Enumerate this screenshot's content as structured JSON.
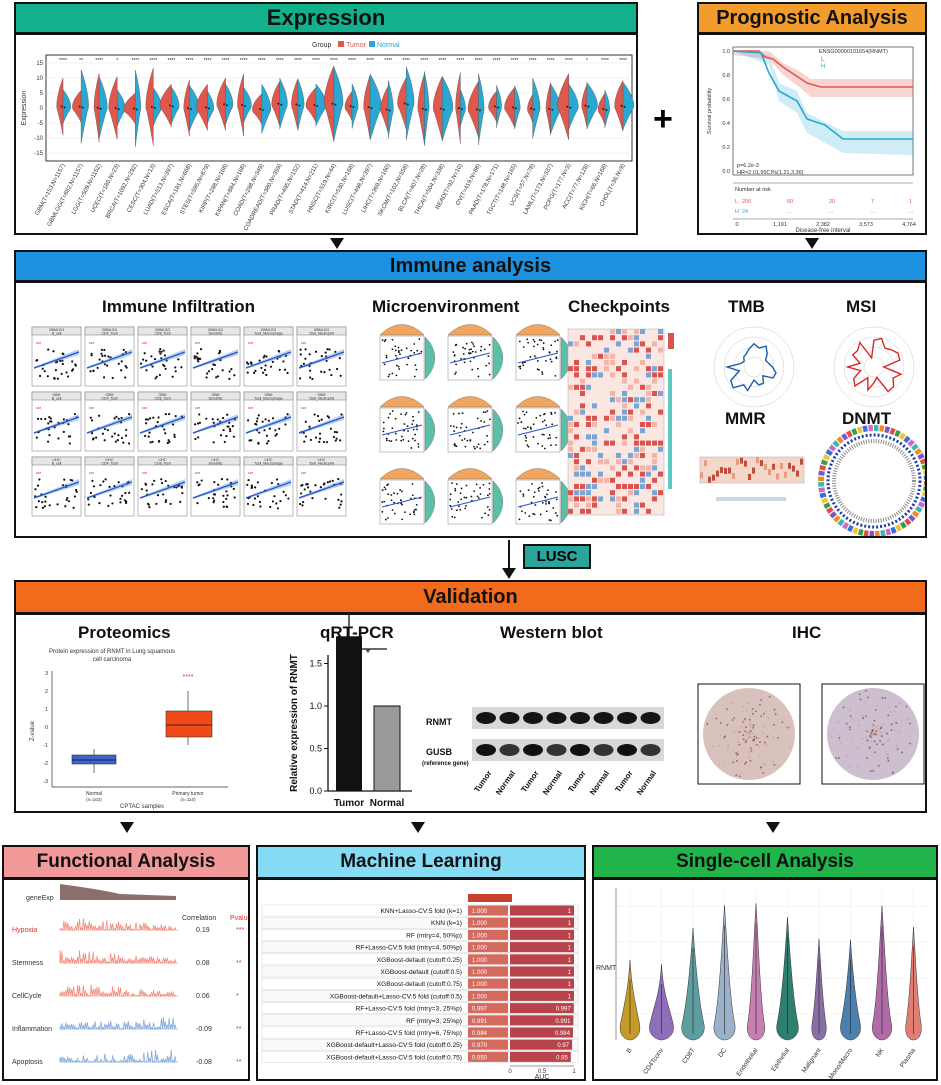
{
  "expression": {
    "title": "Expression",
    "legend_group": "Group",
    "legend_tumor": "Tumor",
    "legend_normal": "Normal",
    "ylabel": "Expression",
    "yticks": [
      "15",
      "10",
      "5",
      "0",
      "-5",
      "-10",
      "-15"
    ],
    "cancers": [
      "GBM(T=153,N=1157)",
      "GBMLGG(T=662,N=1157)",
      "LGG(T=509,N=1152)",
      "UCEC(T=180,N=23)",
      "BRCA(T=1092,N=292)",
      "CESC(T=304,N=13)",
      "LUAD(T=513,N=397)",
      "ESCA(T=181,N=668)",
      "STES(T=595,N=879)",
      "KIRP(T=288,N=168)",
      "KIPAN(T=884,N=168)",
      "COAD(T=288,N=349)",
      "COADREAD(T=380,N=359)",
      "PRAD(T=495,N=152)",
      "STAD(T=414,N=211)",
      "HNSC(T=519,N=44)",
      "KIRC(T=530,N=168)",
      "LUSC(T=498,N=397)",
      "LIHC(T=369,N=160)",
      "SKCM(T=102,N=558)",
      "BLCA(T=407,N=28)",
      "THCA(T=504,N=338)",
      "READ(T=92,N=10)",
      "OV(T=419,N=88)",
      "PAAD(T=178,N=171)",
      "TGCT(T=148,N=165)",
      "UCS(T=57,N=78)",
      "LAML(T=173,N=337)",
      "PCPG(T=177,N=3)",
      "ACC(T=77,N=128)",
      "KICH(T=66,N=168)",
      "CHOL(T=36,N=9)"
    ],
    "signif": [
      "****",
      "**",
      "****",
      "*",
      "****",
      "****",
      "****",
      "****",
      "****",
      "****",
      "****",
      "****",
      "****",
      "****",
      "****",
      "****",
      "****",
      "****",
      "****",
      "****",
      "****",
      "****",
      "****",
      "****",
      "****",
      "****",
      "****",
      "****",
      "****",
      "*",
      "****",
      "****"
    ]
  },
  "prognostic": {
    "title": "Prognostic Analysis",
    "legend_title": "ENSG00000101654(RNMT)",
    "legend_low": "L",
    "legend_high": "H",
    "ylabel": "Survival probability",
    "yticks": [
      "1.0",
      "0.8",
      "0.6",
      "0.4",
      "0.2",
      "0.0"
    ],
    "pvalue": "p=6.2e-3",
    "hr": "HR=2.01,95CI%(1.21,3.36)",
    "risk_title": "Number at risk",
    "risk_L": [
      "L",
      "206",
      "60",
      "20",
      "7",
      "1"
    ],
    "risk_H": [
      "H",
      "24",
      "...",
      "...",
      "...",
      "..."
    ],
    "xticks": [
      "0",
      "1,191",
      "2,382",
      "3,573",
      "4,764"
    ],
    "xlabel": "Disease-free interval"
  },
  "plus_sign": "+",
  "immune": {
    "title": "Immune analysis",
    "infiltration": "Immune Infiltration",
    "microenvironment": "Microenvironment",
    "checkpoints": "Checkpoints",
    "tmb": "TMB",
    "msi": "MSI",
    "mmr": "MMR",
    "dnmt": "DNMT",
    "cells": [
      "B_cell",
      "CD4_Tcell",
      "CD8_Tcell",
      "Dendritic",
      "Tcell_Macrophage",
      "Tcell_Neutrophil"
    ],
    "tissues": [
      "GBMLGG",
      "GBM",
      "LIHC"
    ]
  },
  "lusc_label": "LUSC",
  "validation": {
    "title": "Validation",
    "proteomics": "Proteomics",
    "proteomics_caption": "Protein expression of RNMT in Lung squamous cell carcinoma",
    "prot_ylabel": "Z-value",
    "prot_yticks": [
      "3",
      "2",
      "1",
      "0",
      "-1",
      "-2",
      "-3"
    ],
    "prot_normal": "Normal",
    "prot_normal_n": "(n=102)",
    "prot_tumor": "Primary tumor",
    "prot_tumor_n": "(n=110)",
    "prot_xlabel": "CPTAC samples",
    "prot_sig": "****",
    "qrt": "qRT-PCR",
    "qrt_ylabel": "Relative expression of RNMT",
    "qrt_yticks": [
      "1.5",
      "1.0",
      "0.5",
      "0.0"
    ],
    "qrt_sig": "*",
    "qrt_tumor": "Tumor",
    "qrt_normal": "Normal",
    "western": "Western blot",
    "wb_rnmt": "RNMT",
    "wb_gusb": "GUSB",
    "wb_ref": "(reference gene)",
    "wb_lanes": [
      "Tumor",
      "Normal",
      "Tumor",
      "Normal",
      "Tumor",
      "Normal",
      "Tumor",
      "Normal"
    ],
    "ihc": "IHC"
  },
  "functional": {
    "title": "Functional Analysis",
    "geneexp": "geneExp",
    "col_corr": "Correlation",
    "col_p": "Pvalue",
    "rows": [
      {
        "name": "Hypoxia",
        "corr": "0.19",
        "p": "***"
      },
      {
        "name": "Stemness",
        "corr": "0.08",
        "p": "**"
      },
      {
        "name": "CellCycle",
        "corr": "0.06",
        "p": "*"
      },
      {
        "name": "Inflammation",
        "corr": "-0.09",
        "p": "**"
      },
      {
        "name": "Apoptosis",
        "corr": "-0.08",
        "p": "**"
      }
    ]
  },
  "ml": {
    "title": "Machine Learning",
    "auc_label": "AUC",
    "ticks": [
      "0",
      "0.5",
      "1"
    ],
    "rows": [
      {
        "name": "KNN+Lasso-CV:5 fold (k=1)",
        "train": "1.000",
        "test": "1"
      },
      {
        "name": "KNN (k=1)",
        "train": "1.000",
        "test": "1"
      },
      {
        "name": "RF (mtry=4, 50%p)",
        "train": "1.000",
        "test": "1"
      },
      {
        "name": "RF+Lasso-CV:5 fold (mtry=4, 50%p)",
        "train": "1.000",
        "test": "1"
      },
      {
        "name": "XGBoost-default (cutoff:0.25)",
        "train": "1.000",
        "test": "1"
      },
      {
        "name": "XGBoost-default (cutoff:0.5)",
        "train": "1.000",
        "test": "1"
      },
      {
        "name": "XGBoost-default (cutoff:0.75)",
        "train": "1.000",
        "test": "1"
      },
      {
        "name": "XGBoost-default+Lasso-CV:5 fold (cutoff:0.5)",
        "train": "1.000",
        "test": "1"
      },
      {
        "name": "RF+Lasso-CV:5 fold (mtry=3, 25%p)",
        "train": "0.997",
        "test": "0.997"
      },
      {
        "name": "RF (mtry=3, 25%p)",
        "train": "0.991",
        "test": "0.991"
      },
      {
        "name": "RF+Lasso-CV:5 fold (mtry=6, 75%p)",
        "train": "0.984",
        "test": "0.984"
      },
      {
        "name": "XGBoost-default+Lasso-CV:5 fold (cutoff:0.25)",
        "train": "0.970",
        "test": "0.97"
      },
      {
        "name": "XGBoost-default+Lasso-CV:5 fold (cutoff:0.75)",
        "train": "0.950",
        "test": "0.95"
      }
    ]
  },
  "singlecell": {
    "title": "Single-cell Analysis",
    "ylabel": "RNMT",
    "cells": [
      "B",
      "CD4Tconv",
      "CD8T",
      "DC",
      "Endothelial",
      "Epithelial",
      "Malignant",
      "Mono/Macro",
      "NK",
      "Plasma"
    ],
    "colors": [
      "#c49a2a",
      "#8e6fb7",
      "#5f9ea0",
      "#9bb0c9",
      "#c77fb3",
      "#2f7f70",
      "#8a6fa6",
      "#4a7fae",
      "#b06aa8",
      "#e07e74"
    ]
  },
  "colors": {
    "expression_header": "#13b08c",
    "prognostic_header": "#f39c2e",
    "immune_header": "#1e90e0",
    "lusc_box": "#2aa59c",
    "validation_header": "#f26a1b",
    "functional_header": "#f2999a",
    "ml_header": "#86dcf5",
    "singlecell_header": "#21b44a",
    "tumor": "#e2574c",
    "normal": "#28a8d2"
  }
}
